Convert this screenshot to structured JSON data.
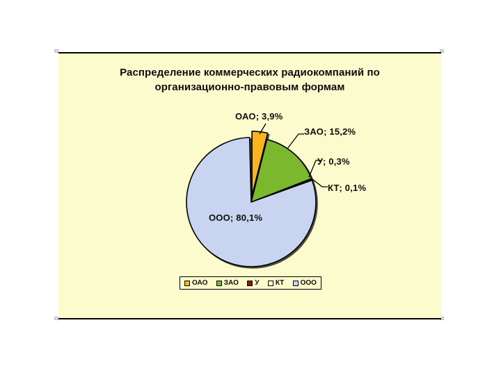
{
  "slide": {
    "title": {
      "line1": "Распределение коммерческих радиокомпаний по",
      "line2": "организационно-правовым формам"
    }
  },
  "chart_data": {
    "type": "pie",
    "title": "Распределение коммерческих радиокомпаний по организационно-правовым формам",
    "unit": "%",
    "start_angle_deg": 0,
    "direction": "clockwise",
    "slices": [
      {
        "name": "ОАО",
        "value": 3.9,
        "label": "ОАО; 3,9%",
        "color": "#fab41e",
        "exploded": true
      },
      {
        "name": "ЗАО",
        "value": 15.2,
        "label": "ЗАО; 15,2%",
        "color": "#7cb82d",
        "exploded": false
      },
      {
        "name": "У",
        "value": 0.3,
        "label": "У; 0,3%",
        "color": "#8e1408",
        "exploded": false
      },
      {
        "name": "КТ",
        "value": 0.1,
        "label": "КТ; 0,1%",
        "color": "#ffffc8",
        "exploded": false
      },
      {
        "name": "ООО",
        "value": 80.1,
        "label": "ООО; 80,1%",
        "color": "#c9d5f0",
        "exploded": false
      }
    ],
    "legend": {
      "position": "bottom",
      "items": [
        "ОАО",
        "ЗАО",
        "У",
        "КТ",
        "ООО"
      ]
    },
    "colors": {
      "slide_background": "#fbfbcd",
      "page_background": "#ffffff",
      "outline": "#000000",
      "text": "#0d0d0d"
    }
  }
}
